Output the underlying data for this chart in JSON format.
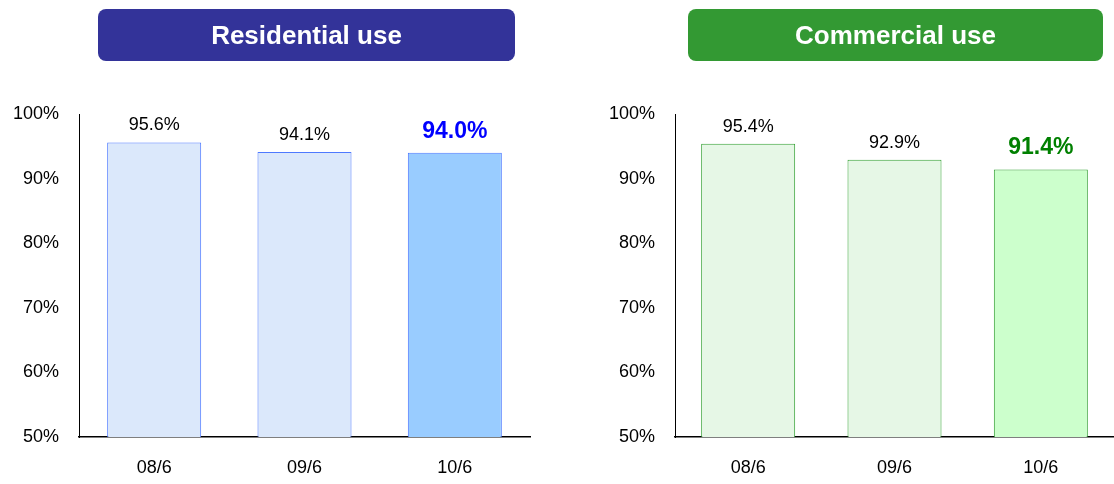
{
  "chart_data": [
    {
      "type": "bar",
      "title": "Residential use",
      "categories": [
        "08/6",
        "09/6",
        "10/6"
      ],
      "values": [
        95.6,
        94.1,
        94.0
      ],
      "colors": [
        "#dbe8fb",
        "#dbe8fb",
        "#99ccff"
      ],
      "value_labels": [
        "95.6%",
        "94.1%",
        "94.0%"
      ],
      "ylim": [
        50,
        100
      ],
      "yticks": [
        {
          "value": 50,
          "label": "50%"
        },
        {
          "value": 60,
          "label": "60%"
        },
        {
          "value": 70,
          "label": "70%"
        },
        {
          "value": 80,
          "label": "80%"
        },
        {
          "value": 90,
          "label": "90%"
        },
        {
          "value": 100,
          "label": "100%"
        }
      ]
    },
    {
      "type": "bar",
      "title": "Commercial use",
      "categories": [
        "08/6",
        "09/6",
        "10/6"
      ],
      "values": [
        95.4,
        92.9,
        91.4
      ],
      "colors": [
        "#e6f7e6",
        "#e6f7e6",
        "#ccffcc"
      ],
      "value_labels": [
        "95.4%",
        "92.9%",
        "91.4%"
      ],
      "ylim": [
        50,
        100
      ],
      "yticks": [
        {
          "value": 50,
          "label": "50%"
        },
        {
          "value": 60,
          "label": "60%"
        },
        {
          "value": 70,
          "label": "70%"
        },
        {
          "value": 80,
          "label": "80%"
        },
        {
          "value": 90,
          "label": "90%"
        },
        {
          "value": 100,
          "label": "100%"
        }
      ]
    }
  ]
}
